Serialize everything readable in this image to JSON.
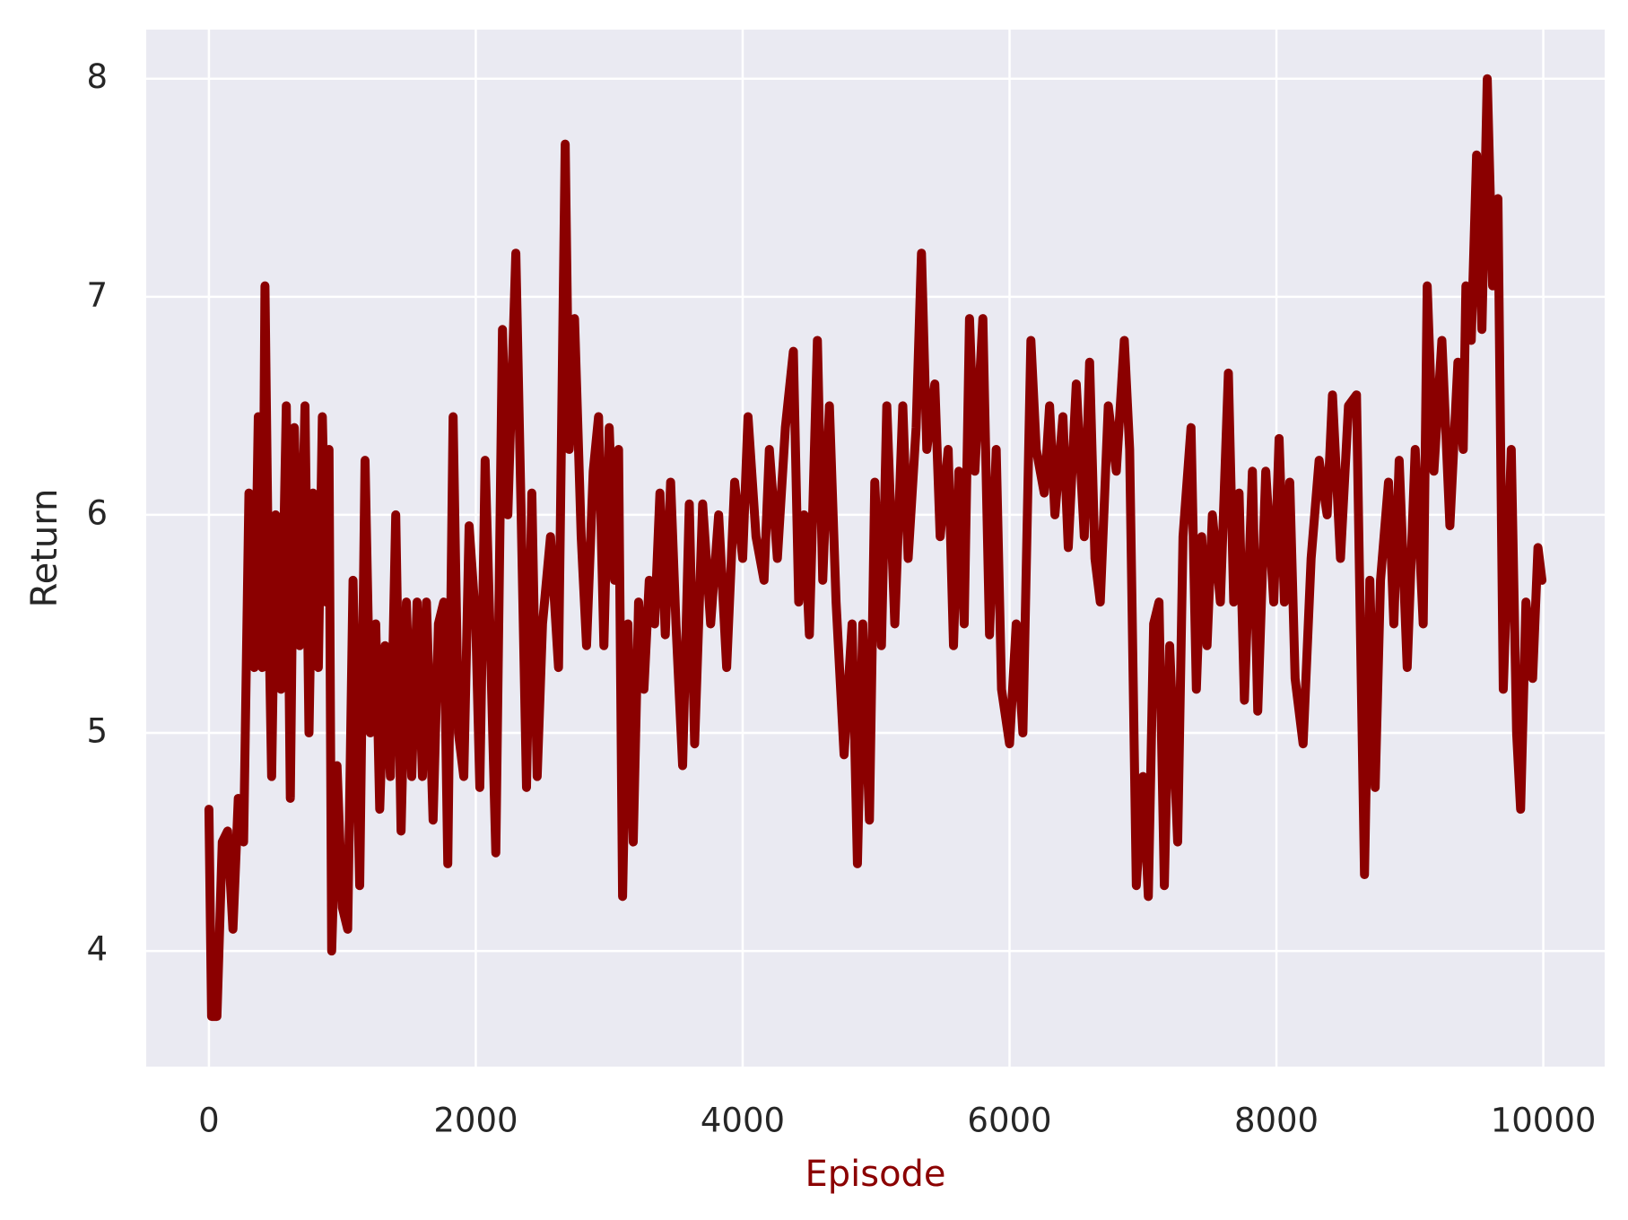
{
  "chart_data": {
    "type": "line",
    "xlabel": "Episode",
    "ylabel": "Return",
    "color": "#8b0000",
    "grid": true,
    "xlim": [
      -470,
      10460
    ],
    "ylim": [
      3.47,
      8.225
    ],
    "xticks": [
      0,
      2000,
      4000,
      6000,
      8000,
      10000
    ],
    "yticks": [
      4,
      5,
      6,
      7,
      8
    ],
    "x": [
      0,
      20,
      60,
      100,
      140,
      180,
      220,
      260,
      300,
      340,
      370,
      400,
      420,
      450,
      470,
      500,
      540,
      580,
      610,
      640,
      680,
      720,
      750,
      780,
      820,
      850,
      880,
      900,
      920,
      960,
      1000,
      1040,
      1080,
      1130,
      1170,
      1210,
      1250,
      1280,
      1320,
      1360,
      1400,
      1440,
      1480,
      1520,
      1560,
      1600,
      1630,
      1680,
      1720,
      1760,
      1790,
      1830,
      1870,
      1910,
      1950,
      2000,
      2030,
      2070,
      2110,
      2150,
      2200,
      2240,
      2300,
      2340,
      2380,
      2420,
      2460,
      2500,
      2560,
      2620,
      2670,
      2700,
      2740,
      2790,
      2830,
      2880,
      2920,
      2960,
      3000,
      3040,
      3070,
      3100,
      3140,
      3180,
      3220,
      3260,
      3300,
      3340,
      3380,
      3420,
      3460,
      3500,
      3550,
      3600,
      3640,
      3700,
      3760,
      3820,
      3880,
      3940,
      4000,
      4040,
      4100,
      4160,
      4200,
      4260,
      4320,
      4380,
      4420,
      4460,
      4500,
      4560,
      4600,
      4650,
      4700,
      4760,
      4820,
      4860,
      4900,
      4950,
      4990,
      5040,
      5080,
      5140,
      5200,
      5240,
      5300,
      5340,
      5380,
      5440,
      5480,
      5540,
      5580,
      5620,
      5660,
      5700,
      5740,
      5800,
      5850,
      5900,
      5940,
      6000,
      6050,
      6100,
      6160,
      6200,
      6260,
      6300,
      6340,
      6400,
      6440,
      6500,
      6560,
      6600,
      6640,
      6680,
      6740,
      6800,
      6860,
      6900,
      6950,
      7000,
      7040,
      7080,
      7120,
      7160,
      7200,
      7260,
      7300,
      7360,
      7400,
      7440,
      7480,
      7520,
      7580,
      7640,
      7680,
      7720,
      7760,
      7820,
      7860,
      7920,
      7980,
      8020,
      8060,
      8100,
      8140,
      8200,
      8260,
      8320,
      8380,
      8420,
      8480,
      8540,
      8600,
      8660,
      8700,
      8740,
      8780,
      8840,
      8880,
      8920,
      8980,
      9040,
      9100,
      9130,
      9180,
      9240,
      9300,
      9360,
      9400,
      9420,
      9460,
      9500,
      9540,
      9580,
      9620,
      9660,
      9700,
      9760,
      9800,
      9830,
      9870,
      9920,
      9960,
      9990
    ],
    "values": [
      4.65,
      3.7,
      3.7,
      4.5,
      4.55,
      4.1,
      4.7,
      4.5,
      6.1,
      5.3,
      6.45,
      5.3,
      7.05,
      5.5,
      4.8,
      6.0,
      5.2,
      6.5,
      4.7,
      6.4,
      5.4,
      6.5,
      5.0,
      6.1,
      5.3,
      6.45,
      5.6,
      6.3,
      4.0,
      4.85,
      4.2,
      4.1,
      5.7,
      4.3,
      6.25,
      5.0,
      5.5,
      4.65,
      5.4,
      4.8,
      6.0,
      4.55,
      5.6,
      4.8,
      5.6,
      4.8,
      5.6,
      4.6,
      5.5,
      5.6,
      4.4,
      6.45,
      5.0,
      4.8,
      5.95,
      5.5,
      4.75,
      6.25,
      5.4,
      4.45,
      6.85,
      6.0,
      7.2,
      6.0,
      4.75,
      6.1,
      4.8,
      5.5,
      5.9,
      5.3,
      7.7,
      6.3,
      6.9,
      5.9,
      5.4,
      6.2,
      6.45,
      5.4,
      6.4,
      5.7,
      6.3,
      4.25,
      5.5,
      4.5,
      5.6,
      5.2,
      5.7,
      5.5,
      6.1,
      5.45,
      6.15,
      5.5,
      4.85,
      6.05,
      4.95,
      6.05,
      5.5,
      6.0,
      5.3,
      6.15,
      5.8,
      6.45,
      5.9,
      5.7,
      6.3,
      5.8,
      6.4,
      6.75,
      5.6,
      6.0,
      5.45,
      6.8,
      5.7,
      6.5,
      5.6,
      4.9,
      5.5,
      4.4,
      5.5,
      4.6,
      6.15,
      5.4,
      6.5,
      5.5,
      6.5,
      5.8,
      6.4,
      7.2,
      6.3,
      6.6,
      5.9,
      6.3,
      5.4,
      6.2,
      5.5,
      6.9,
      6.2,
      6.9,
      5.45,
      6.3,
      5.2,
      4.95,
      5.5,
      5.0,
      6.8,
      6.3,
      6.1,
      6.5,
      6.0,
      6.45,
      5.85,
      6.6,
      5.9,
      6.7,
      5.8,
      5.6,
      6.5,
      6.2,
      6.8,
      6.3,
      4.3,
      4.8,
      4.25,
      5.5,
      5.6,
      4.3,
      5.4,
      4.5,
      5.9,
      6.4,
      5.2,
      5.9,
      5.4,
      6.0,
      5.6,
      6.65,
      5.6,
      6.1,
      5.15,
      6.2,
      5.1,
      6.2,
      5.6,
      6.35,
      5.6,
      6.15,
      5.25,
      4.95,
      5.8,
      6.25,
      6.0,
      6.55,
      5.8,
      6.5,
      6.55,
      4.35,
      5.7,
      4.75,
      5.7,
      6.15,
      5.5,
      6.25,
      5.3,
      6.3,
      5.5,
      7.05,
      6.2,
      6.8,
      5.95,
      6.7,
      6.3,
      7.05,
      6.8,
      7.65,
      6.85,
      8.0,
      7.05,
      7.45,
      5.2,
      6.3,
      5.0,
      4.65,
      5.6,
      5.25,
      5.85,
      5.7
    ]
  }
}
